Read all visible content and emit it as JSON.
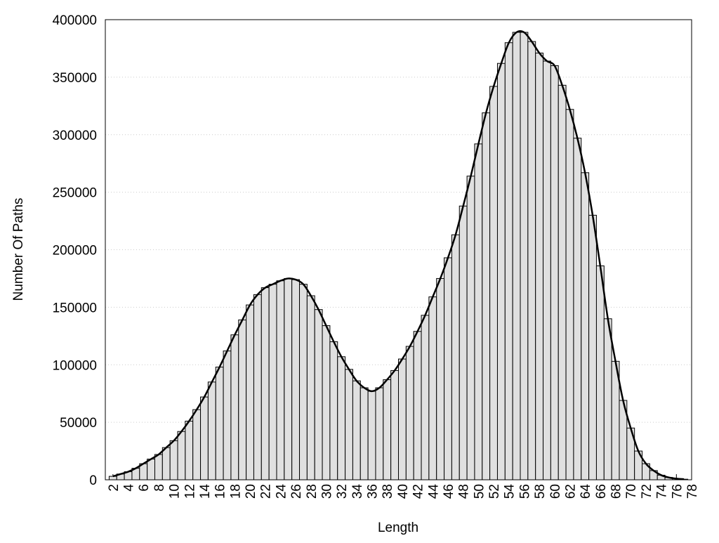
{
  "chart_data": {
    "type": "histogram",
    "xlabel": "Length",
    "ylabel": "Number Of Paths",
    "x": [
      2,
      3,
      4,
      5,
      6,
      7,
      8,
      9,
      10,
      11,
      12,
      13,
      14,
      15,
      16,
      17,
      18,
      19,
      20,
      21,
      22,
      23,
      24,
      25,
      26,
      27,
      28,
      29,
      30,
      31,
      32,
      33,
      34,
      35,
      36,
      37,
      38,
      39,
      40,
      41,
      42,
      43,
      44,
      45,
      46,
      47,
      48,
      49,
      50,
      51,
      52,
      53,
      54,
      55,
      56,
      57,
      58,
      59,
      60,
      61,
      62,
      63,
      64,
      65,
      66,
      67,
      68,
      69,
      70,
      71,
      72,
      73,
      74,
      75,
      76,
      77
    ],
    "values": [
      3000,
      5000,
      7000,
      10000,
      14000,
      18000,
      22000,
      28000,
      34000,
      42000,
      51000,
      61000,
      72000,
      85000,
      98000,
      112000,
      126000,
      139000,
      152000,
      161000,
      167000,
      170000,
      173000,
      175000,
      174000,
      170000,
      160000,
      148000,
      134000,
      120000,
      107000,
      96000,
      86000,
      80000,
      77000,
      80000,
      87000,
      95000,
      105000,
      116000,
      129000,
      143000,
      159000,
      175000,
      193000,
      213000,
      238000,
      264000,
      292000,
      319000,
      342000,
      362000,
      380000,
      389000,
      389000,
      381000,
      371000,
      364000,
      360000,
      343000,
      322000,
      297000,
      267000,
      230000,
      186000,
      140000,
      103000,
      69000,
      45000,
      25000,
      14000,
      8000,
      4000,
      2000,
      1000,
      500
    ],
    "color": "#e0e0e0",
    "line_color": "#000000",
    "grid": true,
    "xlim": [
      1,
      78
    ],
    "xticks": [
      2,
      4,
      6,
      8,
      10,
      12,
      14,
      16,
      18,
      20,
      22,
      24,
      26,
      28,
      30,
      32,
      34,
      36,
      38,
      40,
      42,
      44,
      46,
      48,
      50,
      52,
      54,
      56,
      58,
      60,
      62,
      64,
      66,
      68,
      70,
      72,
      74,
      76,
      78
    ],
    "ylim": [
      0,
      400000
    ],
    "yticks": [
      0,
      50000,
      100000,
      150000,
      200000,
      250000,
      300000,
      350000,
      400000
    ]
  }
}
